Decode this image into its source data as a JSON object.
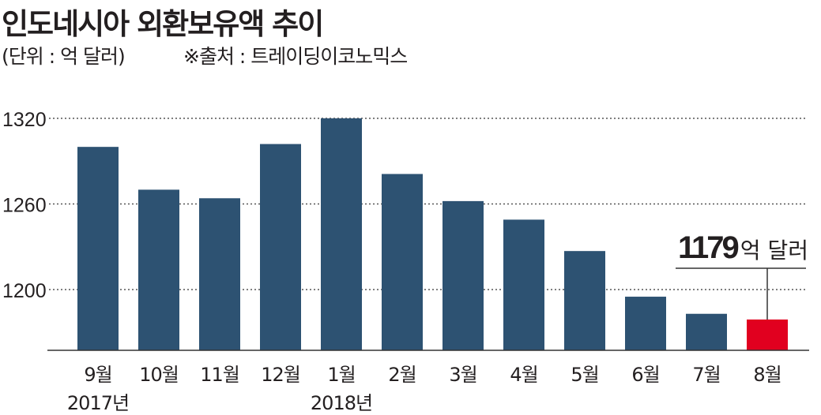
{
  "title": "인도네시아 외환보유액 추이",
  "unit_note": "(단위 : 억 달러)",
  "source_note": "※출처 : 트레이딩이코노믹스",
  "annotation": {
    "value": "1179",
    "unit": "억 달러"
  },
  "colors": {
    "bar": "#2d5272",
    "highlight": "#e1001f",
    "text": "#231f20",
    "grid": "#555555"
  },
  "chart_data": {
    "type": "bar",
    "title": "인도네시아 외환보유액 추이",
    "ylabel": "(단위 : 억 달러)",
    "xlabel": "",
    "categories": [
      "9월",
      "10월",
      "11월",
      "12월",
      "1월",
      "2월",
      "3월",
      "4월",
      "5월",
      "6월",
      "7월",
      "8월"
    ],
    "year_labels": [
      "2017년",
      "",
      "",
      "",
      "2018년",
      "",
      "",
      "",
      "",
      "",
      "",
      ""
    ],
    "values": [
      1300,
      1270,
      1264,
      1302,
      1320,
      1281,
      1262,
      1249,
      1227,
      1195,
      1183,
      1179
    ],
    "highlight_index": 11,
    "yticks": [
      1200,
      1260,
      1320
    ],
    "ylim": [
      1156,
      1320
    ],
    "grid": "dotted"
  }
}
